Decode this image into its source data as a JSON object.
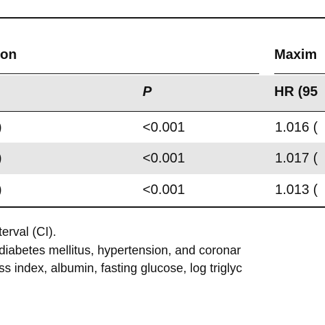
{
  "table": {
    "group_headers": {
      "left": "on",
      "right": "Maxim"
    },
    "column_headers": {
      "p": "P",
      "hr": "HR (95"
    },
    "rows": [
      {
        "left": ")",
        "p": "<0.001",
        "hr": "1.016 ("
      },
      {
        "left": ")",
        "p": "<0.001",
        "hr": "1.017 ("
      },
      {
        "left": ")",
        "p": "<0.001",
        "hr": "1.013 ("
      }
    ]
  },
  "footnotes": [
    "terval (CI).",
    "diabetes mellitus, hypertension, and coronar",
    "ss index, albumin, fasting glucose, log triglyc"
  ]
}
